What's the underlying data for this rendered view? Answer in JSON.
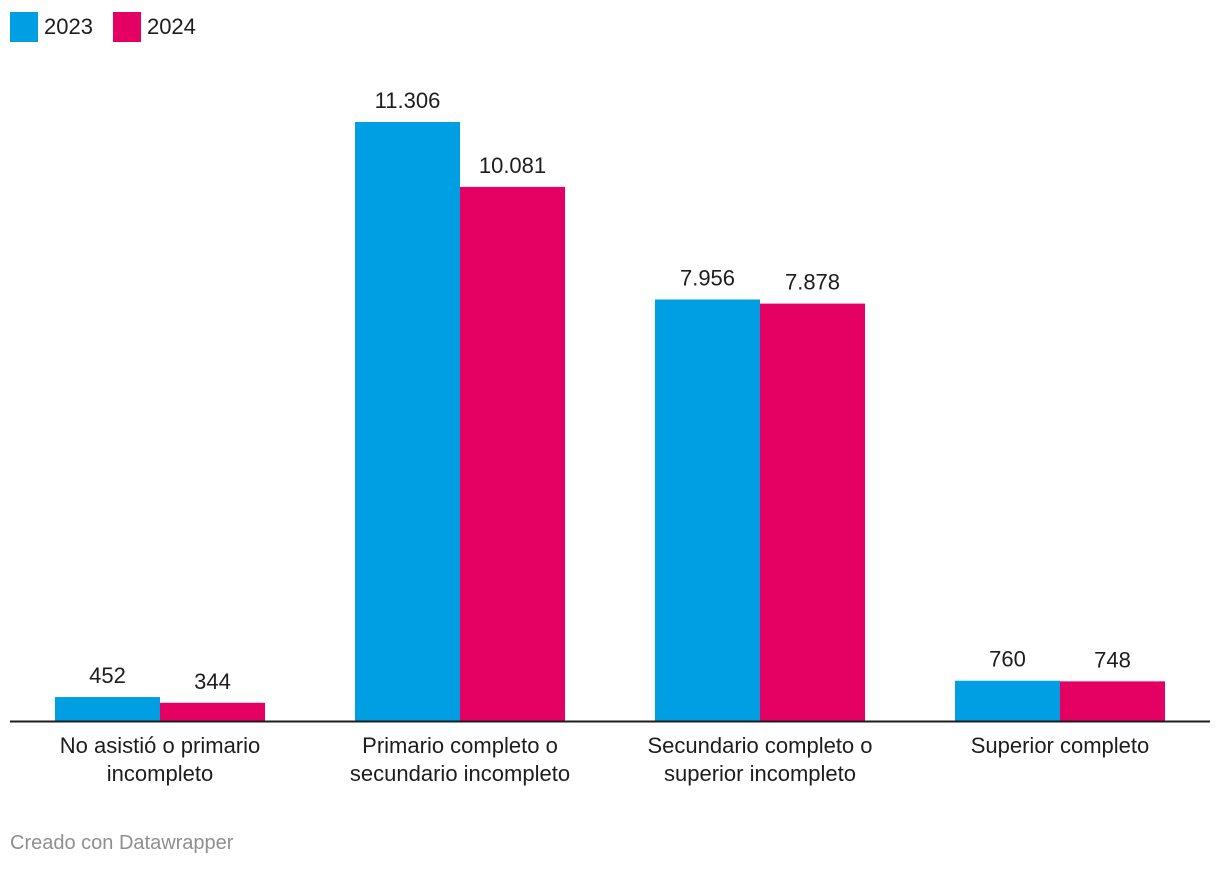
{
  "chart_data": {
    "type": "bar",
    "categories": [
      [
        "No asistió o primario",
        "incompleto"
      ],
      [
        "Primario completo o",
        "secundario incompleto"
      ],
      [
        "Secundario completo o",
        "superior incompleto"
      ],
      [
        "Superior completo"
      ]
    ],
    "series": [
      {
        "name": "2023",
        "color": "#009fe3",
        "values": [
          452,
          11306,
          7956,
          760
        ],
        "labels": [
          "452",
          "11.306",
          "7.956",
          "760"
        ]
      },
      {
        "name": "2024",
        "color": "#e50064",
        "values": [
          344,
          10081,
          7878,
          748
        ],
        "labels": [
          "344",
          "10.081",
          "7.878",
          "748"
        ]
      }
    ],
    "ylim": [
      0,
      11306
    ],
    "grid": false,
    "legend_position": "top-left"
  },
  "credit": "Creado con Datawrapper"
}
